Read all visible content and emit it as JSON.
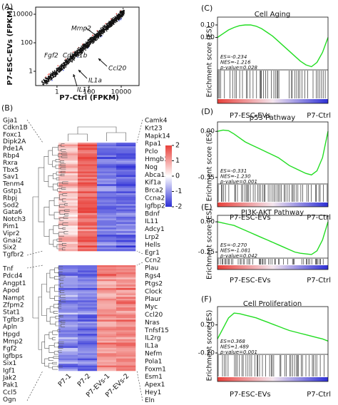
{
  "panel_a": {
    "label": "(A)",
    "xlabel": "P7-Ctrl (FPKM)",
    "ylabel": "P7-ESC-EVs (FPKM)",
    "log": true,
    "xlim": [
      0.047,
      129000
    ],
    "ylim": [
      0.1,
      31623
    ],
    "xticks": [
      1,
      100,
      10000
    ],
    "yticks": [
      1,
      100,
      10000
    ],
    "colors": {
      "up": "#e8403a",
      "down": "#4a5bd6",
      "other": "#111111"
    },
    "annotations": [
      {
        "text": "Mmp2",
        "color": "#e0201b"
      },
      {
        "text": "Fgf2",
        "color": "#e0201b"
      },
      {
        "text": "Cdkn1b",
        "color": "#e0201b"
      },
      {
        "text": "Ccl20",
        "color": "#222222"
      },
      {
        "text": "IL1a",
        "color": "#222222"
      },
      {
        "text": "IL11",
        "color": "#222222"
      }
    ]
  },
  "panel_b": {
    "label": "(B)",
    "left_genes_top": [
      "Gja1",
      "Cdkn1B",
      "Foxc1",
      "Dipk2A",
      "Pde1A",
      "Rbp4",
      "Rxra",
      "Tbx5",
      "Sav1",
      "Tenm4",
      "Gstp1",
      "Rbpj",
      "Sod2",
      "Gata6",
      "Notch3",
      "Pim1",
      "Vipr2",
      "Gnai2",
      "Six2",
      "Tgfbr2"
    ],
    "left_genes_bottom": [
      "Tnf",
      "Pdcd4",
      "Angpt1",
      "Apod",
      "Nampt",
      "Zfpm2",
      "Stat1",
      "Tgfbr3",
      "Apln",
      "Hpgd",
      "Mmp2",
      "Fgf2",
      "Igfbps",
      "Six1",
      "Igf1",
      "Jak2",
      "Pak1",
      "Ccl5",
      "Ogn"
    ],
    "right_genes": [
      {
        "text": "Camk4"
      },
      {
        "text": "Krt23"
      },
      {
        "text": "Mapk14"
      },
      {
        "text": "Rpa1"
      },
      {
        "text": "Pclo"
      },
      {
        "text": "Hmgb1"
      },
      {
        "text": "Nog"
      },
      {
        "text": "Abca13"
      },
      {
        "text": "Kif1a"
      },
      {
        "text": "Brca2"
      },
      {
        "text": "Ccna2"
      },
      {
        "text": "Igfbp2"
      },
      {
        "text": "Bdnf"
      },
      {
        "text": "IL11"
      },
      {
        "text": "Adcy1"
      },
      {
        "text": "Lrp2"
      },
      {
        "text": "Hells"
      },
      {
        "text": "Egr1"
      },
      {
        "text": "Ccn2",
        "color": "#e0201b"
      },
      {
        "text": "Plau"
      },
      {
        "text": "Rgs4"
      },
      {
        "text": "Ptgs2"
      },
      {
        "text": "Clock"
      },
      {
        "text": "Plaur"
      },
      {
        "text": "Myc"
      },
      {
        "text": "Ccl20"
      },
      {
        "text": "Nras"
      },
      {
        "text": "Tnfsf15"
      },
      {
        "text": "IL2rg"
      },
      {
        "text": "IL1a"
      },
      {
        "text": "Nefm"
      },
      {
        "text": "Pola1"
      },
      {
        "text": "Foxm1"
      },
      {
        "text": "Esm1"
      },
      {
        "text": "Apex1"
      },
      {
        "text": "Hey1"
      },
      {
        "text": "Eln"
      }
    ],
    "columns": [
      "P7-1",
      "P7-2",
      "P7-EVs-1",
      "P7-EVs-2"
    ],
    "colorbar": {
      "ticks": [
        2,
        1,
        0,
        -1,
        -2
      ],
      "colors": [
        "#2d2fd6",
        "#ffffff",
        "#e8403a"
      ]
    }
  },
  "gsea": [
    {
      "label": "(C)",
      "title": "Cell Aging",
      "ylabel": "Erichment score (ES)",
      "ylim": [
        -0.26,
        0.14
      ],
      "yticks": [
        {
          "value": 0.1,
          "label": "0.10"
        },
        {
          "value": 0,
          "label": "0.00"
        }
      ],
      "stats": [
        "ES=-0.234",
        "NES=-1.216",
        "p-value=0.028"
      ],
      "xlabels": [
        "P7-ESC-EVs",
        "P7-Ctrl"
      ],
      "color": "#22dd22",
      "curve": [
        0,
        0.03,
        0.06,
        0.08,
        0.095,
        0.1,
        0.1,
        0.09,
        0.07,
        0.04,
        0.01,
        -0.03,
        -0.07,
        -0.11,
        -0.15,
        -0.19,
        -0.22,
        -0.234,
        -0.2,
        -0.12,
        0
      ]
    },
    {
      "label": "(D)",
      "title": "p53 Pathway",
      "ylabel": "Erichment score (ES)",
      "ylim": [
        -0.4,
        0.05
      ],
      "yticks": [
        {
          "value": 0,
          "label": "0.00"
        },
        {
          "value": -0.35,
          "label": "-0.35"
        }
      ],
      "stats": [
        "ES=-0.331",
        "NES=-1.230",
        "p-value=0.001"
      ],
      "xlabels": [
        "P7-ESC-EVs",
        "P7-Ctrl"
      ],
      "color": "#22dd22",
      "curve": [
        0,
        0.01,
        0.005,
        -0.02,
        -0.05,
        -0.08,
        -0.1,
        -0.12,
        -0.14,
        -0.16,
        -0.18,
        -0.2,
        -0.23,
        -0.26,
        -0.28,
        -0.3,
        -0.32,
        -0.331,
        -0.3,
        -0.2,
        0
      ]
    },
    {
      "label": "(E)",
      "title": "PI3K-AKT Pathway",
      "ylabel": "Erichment score (ES)",
      "ylim": [
        -0.3,
        0.03
      ],
      "yticks": [
        {
          "value": 0,
          "label": "0.00"
        },
        {
          "value": -0.25,
          "label": "-0.25"
        }
      ],
      "stats": [
        "ES=-0.270",
        "NES=-1.081",
        "p-value=0.042"
      ],
      "xlabels": [
        "P7-ESC-EVs",
        "P7-Ctrl"
      ],
      "color": "#22dd22",
      "curve": [
        0,
        -0.01,
        -0.02,
        -0.03,
        -0.05,
        -0.07,
        -0.09,
        -0.11,
        -0.13,
        -0.15,
        -0.17,
        -0.19,
        -0.21,
        -0.23,
        -0.25,
        -0.26,
        -0.265,
        -0.27,
        -0.24,
        -0.15,
        0
      ]
    },
    {
      "label": "(F)",
      "title": "Cell Proliferation",
      "ylabel": "Erichment score (ES)",
      "ylim": [
        -0.22,
        0.42
      ],
      "yticks": [
        {
          "value": 0.2,
          "label": "0.20"
        },
        {
          "value": -0.2,
          "label": "-0.20"
        }
      ],
      "stats": [
        "ES=0.368",
        "NES=1.489",
        "p-value=0.001"
      ],
      "xlabels": [
        "P7-ESC-EVs",
        "P7-Ctrl"
      ],
      "color": "#22dd22",
      "curve": [
        0,
        0.15,
        0.3,
        0.368,
        0.36,
        0.34,
        0.32,
        0.3,
        0.27,
        0.24,
        0.21,
        0.18,
        0.15,
        0.12,
        0.1,
        0.08,
        0.06,
        0.04,
        0.02,
        0,
        -0.03
      ]
    }
  ]
}
